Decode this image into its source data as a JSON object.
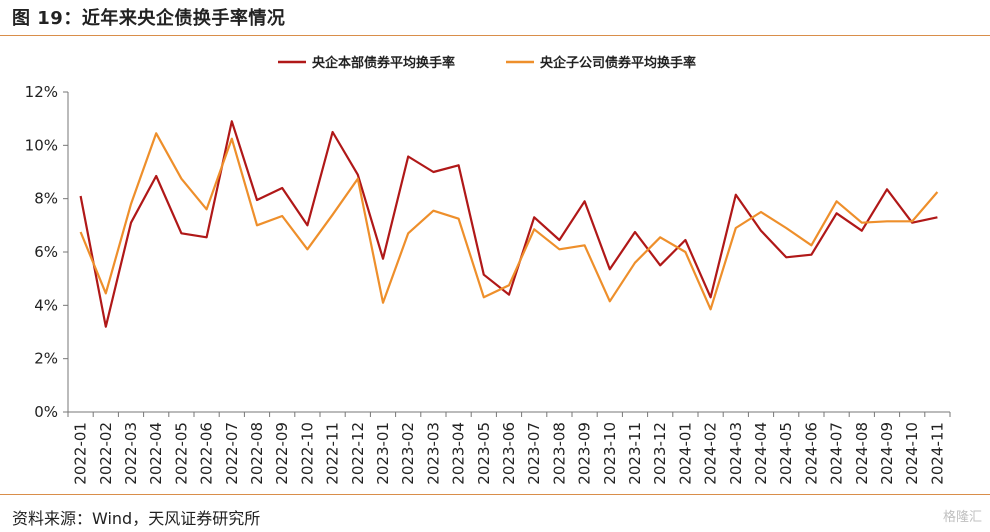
{
  "header": {
    "title": "图 19：近年来央企债换手率情况"
  },
  "footer": {
    "source": "资料来源：Wind，天风证券研究所",
    "watermark": "格隆汇"
  },
  "colors": {
    "series1": "#b01818",
    "series2": "#ee8f2b",
    "axis": "#777777",
    "rule": "#d98e4a"
  },
  "chart_data": {
    "type": "line",
    "title": "",
    "xlabel": "",
    "ylabel": "",
    "ylim": [
      0,
      12
    ],
    "yticks": [
      "0%",
      "2%",
      "4%",
      "6%",
      "8%",
      "10%",
      "12%"
    ],
    "grid": false,
    "legend": "top-center",
    "categories": [
      "2022-01",
      "2022-02",
      "2022-03",
      "2022-04",
      "2022-05",
      "2022-06",
      "2022-07",
      "2022-08",
      "2022-09",
      "2022-10",
      "2022-11",
      "2022-12",
      "2023-01",
      "2023-02",
      "2023-03",
      "2023-04",
      "2023-05",
      "2023-06",
      "2023-07",
      "2023-08",
      "2023-09",
      "2023-10",
      "2023-11",
      "2023-12",
      "2024-01",
      "2024-02",
      "2024-03",
      "2024-04",
      "2024-05",
      "2024-06",
      "2024-07",
      "2024-08",
      "2024-09",
      "2024-10",
      "2024-11"
    ],
    "series": [
      {
        "name": "央企本部债券平均换手率",
        "values": [
          8.1,
          3.2,
          7.1,
          8.85,
          6.7,
          6.55,
          10.9,
          7.95,
          8.4,
          7.0,
          10.5,
          8.9,
          5.75,
          9.58,
          9.0,
          9.25,
          5.15,
          4.4,
          7.3,
          6.45,
          7.9,
          5.35,
          6.75,
          5.5,
          6.45,
          4.3,
          8.15,
          6.8,
          5.8,
          5.9,
          7.45,
          6.8,
          8.35,
          7.1,
          7.3
        ]
      },
      {
        "name": "央企子公司债券平均换手率",
        "values": [
          6.75,
          4.45,
          7.8,
          10.45,
          8.75,
          7.6,
          10.25,
          7.0,
          7.35,
          6.1,
          7.4,
          8.75,
          4.1,
          6.7,
          7.55,
          7.25,
          4.3,
          4.75,
          6.85,
          6.1,
          6.25,
          4.15,
          5.6,
          6.55,
          6.0,
          3.85,
          6.9,
          7.5,
          6.9,
          6.25,
          7.9,
          7.1,
          7.15,
          7.15,
          8.25
        ]
      }
    ]
  }
}
